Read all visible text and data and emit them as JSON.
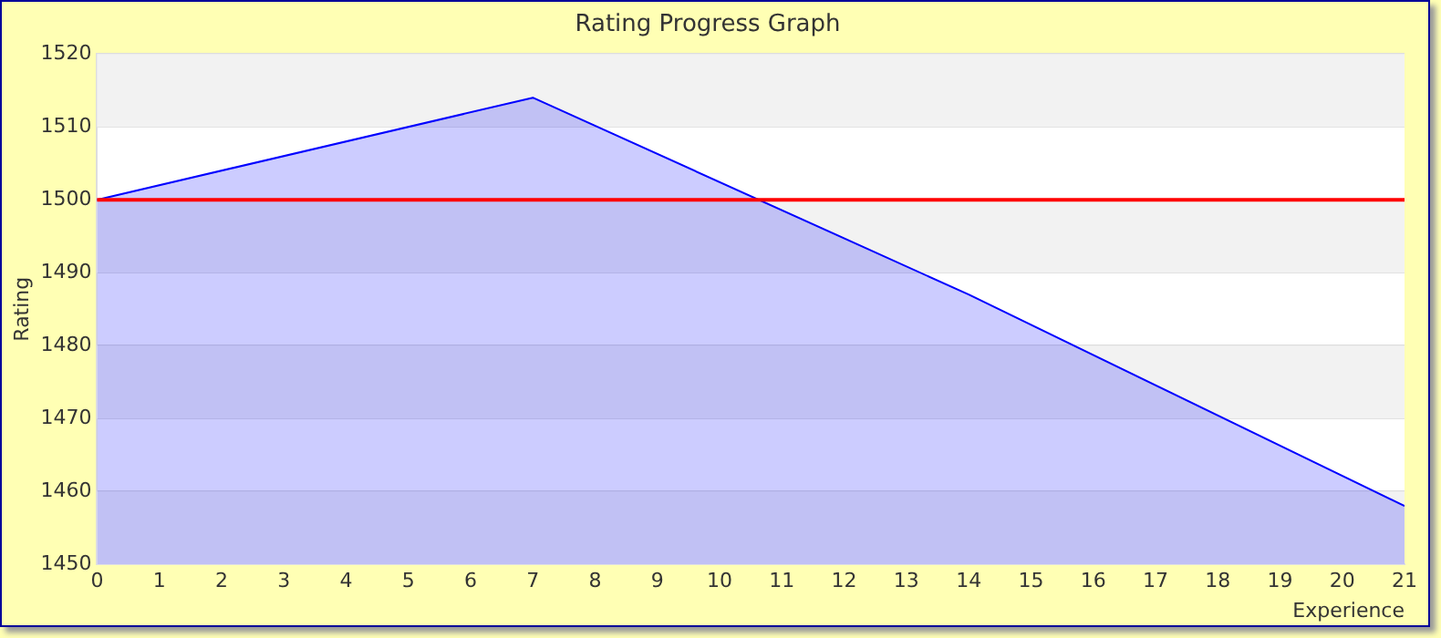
{
  "chart_data": {
    "type": "area",
    "title": "Rating Progress Graph",
    "xlabel": "Experience",
    "ylabel": "Rating",
    "x": [
      0,
      7,
      14,
      21
    ],
    "series": [
      {
        "color": "#0000ff",
        "values": [
          1500,
          1514,
          1487,
          1458
        ]
      }
    ],
    "xlim": [
      0,
      21
    ],
    "xticks": [
      0,
      1,
      2,
      3,
      4,
      5,
      6,
      7,
      8,
      9,
      10,
      11,
      12,
      13,
      14,
      15,
      16,
      17,
      18,
      19,
      20,
      21
    ],
    "ylim": [
      1450,
      1520
    ],
    "yticks": [
      1450,
      1460,
      1470,
      1480,
      1490,
      1500,
      1510,
      1520
    ],
    "ref_lines": [
      {
        "axis": "y",
        "value": 1500,
        "color": "#ff0000"
      }
    ],
    "grid": "y",
    "legend": false,
    "marker": "none"
  }
}
